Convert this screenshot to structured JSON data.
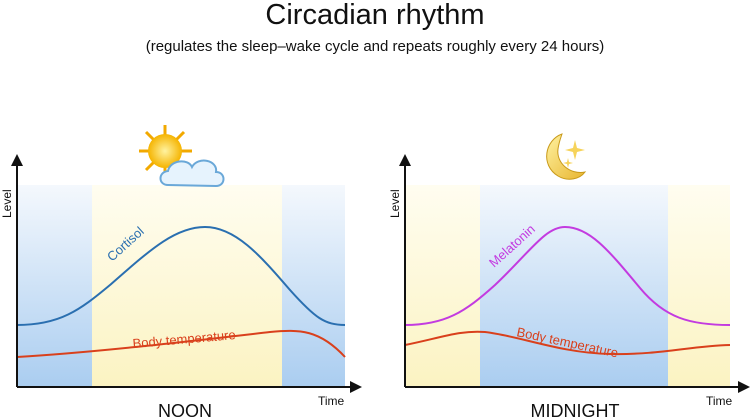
{
  "title": "Circadian rhythm",
  "subtitle": "(regulates the sleep–wake cycle and repeats roughly every 24 hours)",
  "panels": [
    {
      "y_axis_label": "Level",
      "x_axis_label": "Time",
      "caption": "NOON",
      "curves": [
        {
          "label": "Cortisol"
        },
        {
          "label": "Body temperature"
        }
      ]
    },
    {
      "y_axis_label": "Level",
      "x_axis_label": "Time",
      "caption": "MIDNIGHT",
      "curves": [
        {
          "label": "Melatonin"
        },
        {
          "label": "Body temperature"
        }
      ]
    }
  ]
}
